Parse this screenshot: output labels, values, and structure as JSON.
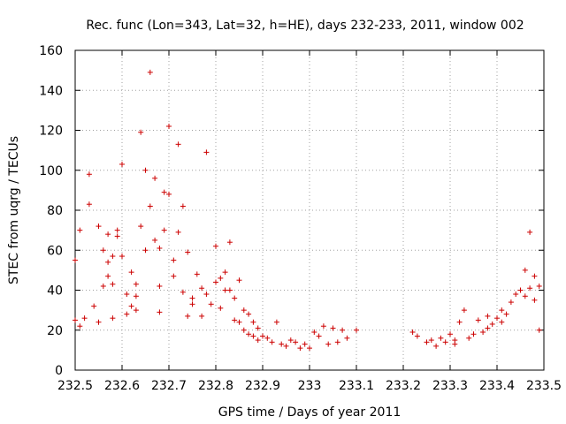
{
  "chart_data": {
    "type": "scatter",
    "title": "Rec. func (Lon=343, Lat=32, h=HE), days 232-233, 2011, window 002",
    "xlabel": "GPS time / Days of year 2011",
    "ylabel": "STEC from uqrg / TECUs",
    "xlim": [
      232.5,
      233.5
    ],
    "ylim": [
      0,
      160
    ],
    "xticks": [
      "232.5",
      "232.6",
      "232.7",
      "232.8",
      "232.9",
      "233",
      "233.1",
      "233.2",
      "233.3",
      "233.4",
      "233.5"
    ],
    "yticks": [
      "0",
      "20",
      "40",
      "60",
      "80",
      "100",
      "120",
      "140",
      "160"
    ],
    "grid": true,
    "legend": "none",
    "marker": "plus",
    "series_color": "#cc0000",
    "series": [
      {
        "x": [
          232.5,
          232.5,
          232.51,
          232.51,
          232.52,
          232.53,
          232.53,
          232.54,
          232.55,
          232.55,
          232.56,
          232.56,
          232.57,
          232.57,
          232.57,
          232.58,
          232.58,
          232.58,
          232.59,
          232.59,
          232.6,
          232.6,
          232.61,
          232.61,
          232.62,
          232.62,
          232.63,
          232.63,
          232.63,
          232.64,
          232.64,
          232.65,
          232.65,
          232.66,
          232.66,
          232.67,
          232.67,
          232.68,
          232.68,
          232.68,
          232.69,
          232.69,
          232.7,
          232.7,
          232.71,
          232.71,
          232.72,
          232.72,
          232.73,
          232.73,
          232.74,
          232.74,
          232.75,
          232.75,
          232.76,
          232.77,
          232.77,
          232.78,
          232.78,
          232.79,
          232.8,
          232.8,
          232.81,
          232.81,
          232.82,
          232.82,
          232.83,
          232.83,
          232.84,
          232.84,
          232.85,
          232.85,
          232.86,
          232.86,
          232.87,
          232.87,
          232.88,
          232.88,
          232.89,
          232.89,
          232.9,
          232.91,
          232.92,
          232.93,
          232.94,
          232.95,
          232.96,
          232.97,
          232.98,
          232.99,
          233.0,
          233.01,
          233.02,
          233.03,
          233.04,
          233.05,
          233.06,
          233.07,
          233.08,
          233.1
        ],
        "y": [
          55,
          25,
          70,
          22,
          26,
          98,
          83,
          32,
          72,
          24,
          60,
          42,
          68,
          54,
          47,
          57,
          26,
          43,
          70,
          67,
          103,
          57,
          28,
          38,
          49,
          32,
          30,
          37,
          43,
          119,
          72,
          100,
          60,
          149,
          82,
          65,
          96,
          61,
          29,
          42,
          70,
          89,
          122,
          88,
          55,
          47,
          113,
          69,
          82,
          39,
          59,
          27,
          36,
          33,
          48,
          41,
          27,
          109,
          38,
          33,
          62,
          44,
          46,
          31,
          49,
          40,
          40,
          64,
          36,
          25,
          45,
          24,
          30,
          20,
          28,
          18,
          24,
          17,
          21,
          15,
          17,
          16,
          14,
          24,
          13,
          12,
          15,
          14,
          11,
          13,
          11,
          19,
          17,
          22,
          13,
          21,
          14,
          20,
          16,
          20
        ]
      },
      {
        "x": [
          233.22,
          233.23,
          233.25,
          233.26,
          233.27,
          233.28,
          233.29,
          233.3,
          233.31,
          233.31,
          233.32,
          233.33,
          233.34,
          233.35,
          233.36,
          233.37,
          233.38,
          233.38,
          233.39,
          233.4,
          233.41,
          233.41,
          233.42,
          233.43,
          233.44,
          233.45,
          233.46,
          233.46,
          233.47,
          233.47,
          233.48,
          233.48,
          233.49,
          233.49
        ],
        "y": [
          19,
          17,
          14,
          15,
          12,
          16,
          14,
          18,
          13,
          15,
          24,
          30,
          16,
          18,
          25,
          19,
          27,
          21,
          23,
          26,
          30,
          24,
          28,
          34,
          38,
          40,
          50,
          37,
          69,
          41,
          35,
          47,
          42,
          20
        ]
      }
    ]
  }
}
